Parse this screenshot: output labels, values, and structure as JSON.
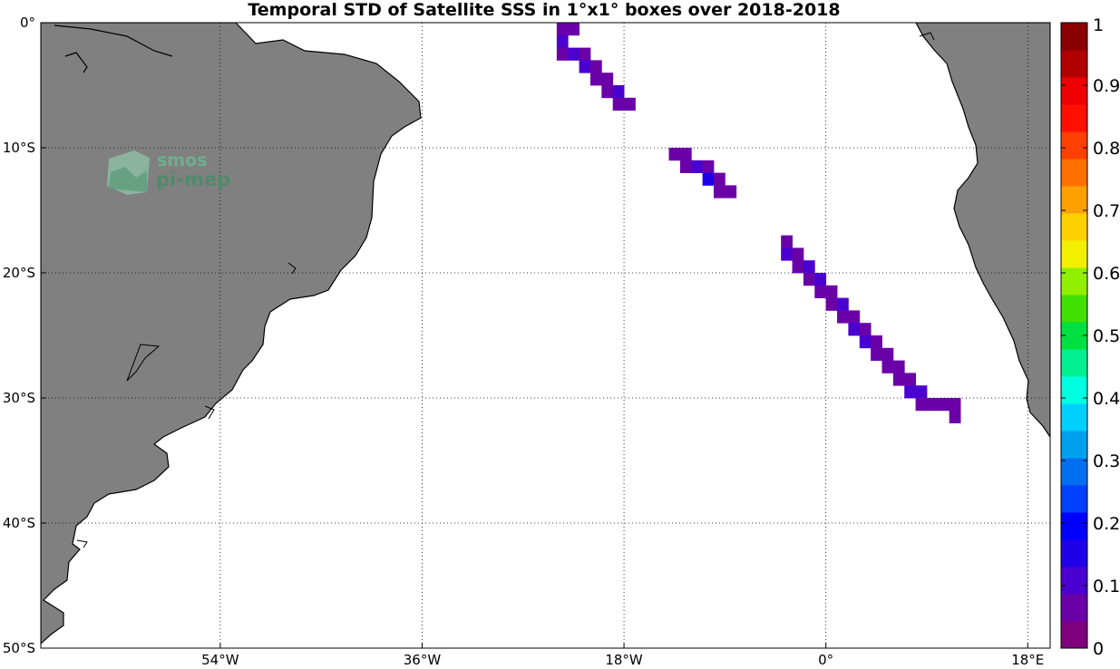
{
  "title": "Temporal STD of Satellite SSS in 1°x1° boxes over 2018-2018",
  "map": {
    "lon_range": [
      -70,
      20
    ],
    "lat_range": [
      -50,
      0
    ],
    "land_color": "#808080",
    "ocean_color": "#ffffff",
    "grid_style": "dotted",
    "lon_ticks": [
      {
        "value": -54,
        "label": "54°W"
      },
      {
        "value": -36,
        "label": "36°W"
      },
      {
        "value": -18,
        "label": "18°W"
      },
      {
        "value": 0,
        "label": "0°"
      },
      {
        "value": 18,
        "label": "18°E"
      }
    ],
    "lat_ticks": [
      {
        "value": 0,
        "label": "0°"
      },
      {
        "value": -10,
        "label": "10°S"
      },
      {
        "value": -20,
        "label": "20°S"
      },
      {
        "value": -30,
        "label": "30°S"
      },
      {
        "value": -40,
        "label": "40°S"
      },
      {
        "value": -50,
        "label": "50°S"
      }
    ]
  },
  "logo": {
    "line1": "smos",
    "line2": "pi-mep",
    "icon": "smos-pimep-logo-icon"
  },
  "colorbar": {
    "min": 0,
    "max": 1,
    "ticks": [
      {
        "value": 0,
        "label": "0"
      },
      {
        "value": 0.1,
        "label": "0.1"
      },
      {
        "value": 0.2,
        "label": "0.2"
      },
      {
        "value": 0.3,
        "label": "0.3"
      },
      {
        "value": 0.4,
        "label": "0.4"
      },
      {
        "value": 0.5,
        "label": "0.5"
      },
      {
        "value": 0.6,
        "label": "0.6"
      },
      {
        "value": 0.7,
        "label": "0.7"
      },
      {
        "value": 0.8,
        "label": "0.8"
      },
      {
        "value": 0.9,
        "label": "0.9"
      },
      {
        "value": 1,
        "label": "1"
      }
    ],
    "colors": [
      "#7f007f",
      "#6a00a8",
      "#4a00d0",
      "#1f00e8",
      "#0000ff",
      "#0040ff",
      "#0070f0",
      "#00a0f0",
      "#00d0ff",
      "#00ffe0",
      "#00f090",
      "#00e040",
      "#40e000",
      "#90f000",
      "#f0f000",
      "#ffd000",
      "#ffa000",
      "#ff7000",
      "#ff4000",
      "#ff1000",
      "#ee0000",
      "#b00000",
      "#8a0000"
    ]
  },
  "chart_data": {
    "type": "heatmap",
    "title": "Temporal STD of Satellite SSS in 1°x1° boxes over 2018-2018",
    "units": "1°x1° boxes",
    "cells": [
      {
        "lon": -23.5,
        "lat": -0.5,
        "value": 0.06
      },
      {
        "lon": -23.5,
        "lat": -1.5,
        "value": 0.09
      },
      {
        "lon": -23.5,
        "lat": -2.5,
        "value": 0.05
      },
      {
        "lon": -22.5,
        "lat": -0.5,
        "value": 0.05
      },
      {
        "lon": -22.5,
        "lat": -2.5,
        "value": 0.12
      },
      {
        "lon": -21.5,
        "lat": -2.5,
        "value": 0.05
      },
      {
        "lon": -21.5,
        "lat": -3.5,
        "value": 0.12
      },
      {
        "lon": -20.5,
        "lat": -3.5,
        "value": 0.05
      },
      {
        "lon": -20.5,
        "lat": -4.5,
        "value": 0.05
      },
      {
        "lon": -19.5,
        "lat": -4.5,
        "value": 0.05
      },
      {
        "lon": -19.5,
        "lat": -5.5,
        "value": 0.05
      },
      {
        "lon": -18.5,
        "lat": -5.5,
        "value": 0.12
      },
      {
        "lon": -18.5,
        "lat": -6.5,
        "value": 0.05
      },
      {
        "lon": -17.5,
        "lat": -6.5,
        "value": 0.05
      },
      {
        "lon": -13.5,
        "lat": -10.5,
        "value": 0.05
      },
      {
        "lon": -12.5,
        "lat": -10.5,
        "value": 0.05
      },
      {
        "lon": -12.5,
        "lat": -11.5,
        "value": 0.05
      },
      {
        "lon": -11.5,
        "lat": -11.5,
        "value": 0.12
      },
      {
        "lon": -10.5,
        "lat": -11.5,
        "value": 0.05
      },
      {
        "lon": -10.5,
        "lat": -12.5,
        "value": 0.17
      },
      {
        "lon": -9.5,
        "lat": -12.5,
        "value": 0.05
      },
      {
        "lon": -9.5,
        "lat": -13.5,
        "value": 0.05
      },
      {
        "lon": -8.5,
        "lat": -13.5,
        "value": 0.05
      },
      {
        "lon": -3.5,
        "lat": -17.5,
        "value": 0.05
      },
      {
        "lon": -3.5,
        "lat": -18.5,
        "value": 0.12
      },
      {
        "lon": -2.5,
        "lat": -18.5,
        "value": 0.05
      },
      {
        "lon": -2.5,
        "lat": -19.5,
        "value": 0.05
      },
      {
        "lon": -1.5,
        "lat": -19.5,
        "value": 0.12
      },
      {
        "lon": -1.5,
        "lat": -20.5,
        "value": 0.05
      },
      {
        "lon": -0.5,
        "lat": -20.5,
        "value": 0.12
      },
      {
        "lon": -0.5,
        "lat": -21.5,
        "value": 0.05
      },
      {
        "lon": 0.5,
        "lat": -21.5,
        "value": 0.05
      },
      {
        "lon": 0.5,
        "lat": -22.5,
        "value": 0.05
      },
      {
        "lon": 1.5,
        "lat": -22.5,
        "value": 0.12
      },
      {
        "lon": 1.5,
        "lat": -23.5,
        "value": 0.05
      },
      {
        "lon": 2.5,
        "lat": -23.5,
        "value": 0.05
      },
      {
        "lon": 2.5,
        "lat": -24.5,
        "value": 0.12
      },
      {
        "lon": 3.5,
        "lat": -24.5,
        "value": 0.05
      },
      {
        "lon": 3.5,
        "lat": -25.5,
        "value": 0.12
      },
      {
        "lon": 4.5,
        "lat": -25.5,
        "value": 0.05
      },
      {
        "lon": 4.5,
        "lat": -26.5,
        "value": 0.05
      },
      {
        "lon": 5.5,
        "lat": -26.5,
        "value": 0.05
      },
      {
        "lon": 5.5,
        "lat": -27.5,
        "value": 0.05
      },
      {
        "lon": 6.5,
        "lat": -27.5,
        "value": 0.05
      },
      {
        "lon": 6.5,
        "lat": -28.5,
        "value": 0.05
      },
      {
        "lon": 7.5,
        "lat": -28.5,
        "value": 0.05
      },
      {
        "lon": 7.5,
        "lat": -29.5,
        "value": 0.12
      },
      {
        "lon": 8.5,
        "lat": -29.5,
        "value": 0.12
      },
      {
        "lon": 8.5,
        "lat": -30.5,
        "value": 0.05
      },
      {
        "lon": 9.5,
        "lat": -30.5,
        "value": 0.05
      },
      {
        "lon": 10.5,
        "lat": -30.5,
        "value": 0.05
      },
      {
        "lon": 11.5,
        "lat": -30.5,
        "value": 0.05
      },
      {
        "lon": 11.5,
        "lat": -31.5,
        "value": 0.05
      }
    ]
  }
}
